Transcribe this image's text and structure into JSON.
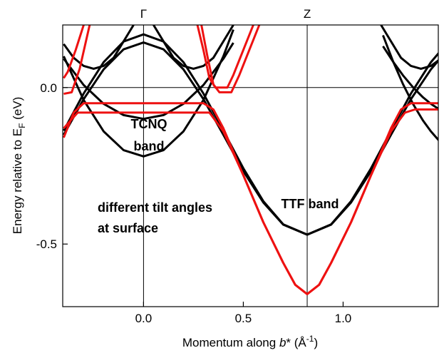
{
  "chart_data": {
    "type": "line",
    "xlim": [
      -0.405,
      1.477
    ],
    "ylim": [
      -0.7,
      0.2
    ],
    "xticks": [
      {
        "value": 0,
        "label": "0.0"
      },
      0.5,
      {
        "value": 1,
        "label": "1.0"
      }
    ],
    "yticks": [
      {
        "value": 0,
        "label": "0.0"
      },
      -0.5
    ],
    "hlines": [
      0
    ],
    "vlines": [
      {
        "x": 0,
        "label": "Γ"
      },
      {
        "x": 0.82,
        "label": "Z"
      }
    ],
    "x_label": [
      "Momentum along ",
      "b",
      "* (Å",
      "-1",
      ")"
    ],
    "y_label": [
      "Energy relative to E",
      "F",
      " (eV)"
    ],
    "annotations": [
      {
        "lines": [
          "TCNQ",
          "band"
        ],
        "color": "#000000"
      },
      {
        "lines": [
          "TTF band"
        ],
        "color": "#000000"
      },
      {
        "lines": [
          "different tilt angles",
          "at surface"
        ],
        "color": "#ee1111"
      }
    ],
    "series": [
      {
        "color": "#000000",
        "x": [
          -0.4,
          -0.3,
          -0.2,
          -0.1,
          0,
          0.1,
          0.2,
          0.3,
          0.4,
          0.5,
          0.6,
          0.7,
          0.82,
          0.94,
          1.04,
          1.14,
          1.24,
          1.34,
          1.44,
          1.48
        ],
        "values": [
          -0.138,
          -0.019,
          0.081,
          0.147,
          0.17,
          0.147,
          0.081,
          -0.019,
          -0.138,
          -0.258,
          -0.363,
          -0.437,
          -0.47,
          -0.437,
          -0.363,
          -0.258,
          -0.138,
          -0.019,
          0.081,
          0.111
        ]
      },
      {
        "color": "#000000",
        "x": [
          -0.4,
          -0.3,
          -0.2,
          -0.1,
          0,
          0.1,
          0.2,
          0.3,
          0.4,
          0.5,
          0.6,
          0.7,
          0.82,
          0.94,
          1.04,
          1.14,
          1.24,
          1.34,
          1.44,
          1.48
        ],
        "values": [
          -0.151,
          -0.037,
          0.058,
          0.122,
          0.144,
          0.122,
          0.058,
          -0.037,
          -0.151,
          -0.267,
          -0.367,
          -0.438,
          -0.47,
          -0.438,
          -0.367,
          -0.267,
          -0.151,
          -0.037,
          0.058,
          0.088
        ]
      },
      {
        "color": "#000000",
        "x": [
          -0.4,
          -0.35,
          -0.3,
          -0.25,
          -0.2,
          -0.15,
          -0.05
        ],
        "values": [
          0.139,
          0.095,
          0.069,
          0.06,
          0.069,
          0.095,
          0.2
        ]
      },
      {
        "color": "#000000",
        "x": [
          0.05,
          0.15,
          0.2,
          0.25,
          0.3,
          0.35,
          0.45
        ],
        "values": [
          0.2,
          0.095,
          0.069,
          0.06,
          0.069,
          0.095,
          0.2
        ]
      },
      {
        "color": "#000000",
        "x": [
          1.19,
          1.29,
          1.34,
          1.39,
          1.44,
          1.48
        ],
        "values": [
          0.2,
          0.095,
          0.069,
          0.06,
          0.069,
          0.088
        ]
      },
      {
        "color": "#000000",
        "x": [
          -0.4,
          -0.3,
          -0.2,
          -0.1,
          0,
          0.1,
          0.2,
          0.3,
          0.4,
          0.45
        ],
        "values": [
          0.1,
          -0.04,
          -0.14,
          -0.2,
          -0.22,
          -0.2,
          -0.14,
          -0.04,
          0.1,
          0.185
        ]
      },
      {
        "color": "#000000",
        "x": [
          -0.4,
          -0.3,
          -0.2,
          -0.1,
          0,
          0.1,
          0.2,
          0.3,
          0.4,
          0.45
        ],
        "values": [
          0.092,
          0.008,
          -0.052,
          -0.088,
          -0.1,
          -0.088,
          -0.052,
          0.008,
          0.092,
          0.143
        ]
      },
      {
        "color": "#000000",
        "x": [
          1.2,
          1.25,
          1.3,
          1.35,
          1.4,
          1.44,
          1.48
        ],
        "values": [
          0.167,
          0.084,
          0.011,
          -0.052,
          -0.105,
          -0.14,
          -0.169
        ]
      },
      {
        "color": "#000000",
        "x": [
          1.2,
          1.25,
          1.3,
          1.35,
          1.4,
          1.44,
          1.48
        ],
        "values": [
          0.132,
          0.083,
          0.039,
          0.001,
          -0.031,
          -0.052,
          -0.069
        ]
      },
      {
        "color": "#ee1111",
        "x": [
          -0.4,
          -0.35,
          -0.3,
          0,
          0.3,
          0.35,
          0.4,
          0.5,
          0.6,
          0.7,
          0.76,
          0.82,
          0.88,
          0.94,
          1.04,
          1.14,
          1.24,
          1.29,
          1.34,
          1.48
        ],
        "values": [
          -0.16,
          -0.08,
          -0.05,
          -0.05,
          -0.05,
          -0.07,
          -0.13,
          -0.28,
          -0.43,
          -0.56,
          -0.63,
          -0.66,
          -0.63,
          -0.56,
          -0.43,
          -0.28,
          -0.13,
          -0.07,
          -0.05,
          -0.05
        ]
      },
      {
        "color": "#ee1111",
        "x": [
          -0.4,
          -0.33,
          0,
          0.33,
          0.4,
          0.5,
          0.6,
          0.7,
          0.76,
          0.82,
          0.88,
          0.94,
          1.04,
          1.14,
          1.24,
          1.31,
          1.36,
          1.48
        ],
        "values": [
          -0.13,
          -0.08,
          -0.08,
          -0.08,
          -0.14,
          -0.28,
          -0.43,
          -0.56,
          -0.63,
          -0.66,
          -0.63,
          -0.56,
          -0.43,
          -0.28,
          -0.14,
          -0.08,
          -0.07,
          -0.07
        ]
      },
      {
        "color": "#ee1111",
        "x": [
          0.27,
          0.3,
          0.33,
          0.36,
          0.42,
          0.45,
          0.5,
          0.55
        ],
        "values": [
          0.2,
          0.12,
          0.03,
          0,
          0,
          0.04,
          0.12,
          0.2
        ]
      },
      {
        "color": "#ee1111",
        "x": [
          0.29,
          0.32,
          0.35,
          0.38,
          0.44,
          0.48,
          0.53,
          0.58
        ],
        "values": [
          0.2,
          0.1,
          0.01,
          -0.015,
          -0.015,
          0.04,
          0.12,
          0.2
        ]
      },
      {
        "color": "#ee1111",
        "x": [
          -0.4,
          -0.36,
          -0.32,
          -0.27
        ],
        "values": [
          -0.02,
          -0.015,
          0.06,
          0.2
        ]
      },
      {
        "color": "#ee1111",
        "x": [
          -0.4,
          -0.38,
          -0.34,
          -0.3
        ],
        "values": [
          0.03,
          0.05,
          0.12,
          0.2
        ]
      }
    ]
  }
}
